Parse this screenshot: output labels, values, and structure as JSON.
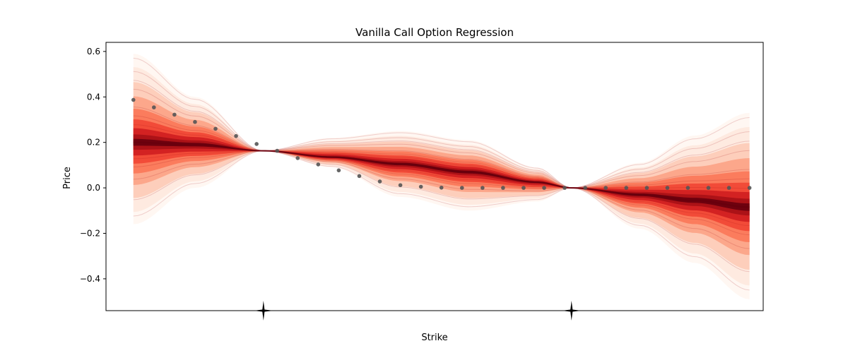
{
  "chart_data": {
    "type": "line",
    "title": "Vanilla Call Option Regression",
    "xlabel": "Strike",
    "ylabel": "Price",
    "ylim": [
      -0.54,
      0.64
    ],
    "xlim": [
      0.52,
      1.48
    ],
    "yticks": [
      -0.4,
      -0.2,
      0.0,
      0.2,
      0.4,
      0.6
    ],
    "ytick_labels": [
      "−0.4",
      "−0.2",
      "0.0",
      "0.2",
      "0.4",
      "0.6"
    ],
    "grid": false,
    "legend": "none",
    "observed_strikes": [
      0.75,
      1.2
    ],
    "band_colormap": "Reds",
    "series": [
      {
        "kind": "points",
        "x": [
          0.56,
          0.59,
          0.62,
          0.65,
          0.68,
          0.71,
          0.74,
          0.77,
          0.8,
          0.83,
          0.86,
          0.89,
          0.92,
          0.95,
          0.98,
          1.01,
          1.04,
          1.07,
          1.1,
          1.13,
          1.16,
          1.19,
          1.22,
          1.25,
          1.28,
          1.31,
          1.34,
          1.37,
          1.4,
          1.43,
          1.46
        ],
        "y": [
          0.387,
          0.354,
          0.322,
          0.29,
          0.26,
          0.228,
          0.193,
          0.163,
          0.131,
          0.103,
          0.077,
          0.052,
          0.028,
          0.012,
          0.005,
          0.001,
          0.0,
          0.0,
          0.0,
          0.0,
          0.0,
          0.0,
          0.0,
          0.0,
          0.0,
          0.0,
          0.0,
          0.0,
          0.0,
          0.0,
          0.0
        ],
        "color": "#555555"
      },
      {
        "kind": "mean",
        "x": [
          0.56,
          0.65,
          0.75,
          0.85,
          0.95,
          1.05,
          1.15,
          1.2,
          1.3,
          1.38,
          1.46
        ],
        "y": [
          0.2,
          0.19,
          0.163,
          0.135,
          0.105,
          0.07,
          0.025,
          0.0,
          -0.03,
          -0.055,
          -0.085
        ],
        "color": "#67000d"
      }
    ],
    "band_upper": {
      "x": [
        0.56,
        0.65,
        0.75,
        0.85,
        0.95,
        1.05,
        1.15,
        1.2,
        1.3,
        1.38,
        1.46
      ],
      "y": [
        0.59,
        0.4,
        0.163,
        0.22,
        0.25,
        0.21,
        0.09,
        0.0,
        0.11,
        0.23,
        0.33
      ]
    },
    "band_lower": {
      "x": [
        0.56,
        0.65,
        0.75,
        0.85,
        0.95,
        1.05,
        1.15,
        1.2,
        1.3,
        1.38,
        1.46
      ],
      "y": [
        -0.16,
        0.0,
        0.163,
        0.09,
        -0.04,
        -0.1,
        -0.06,
        0.0,
        -0.18,
        -0.33,
        -0.49
      ]
    }
  }
}
